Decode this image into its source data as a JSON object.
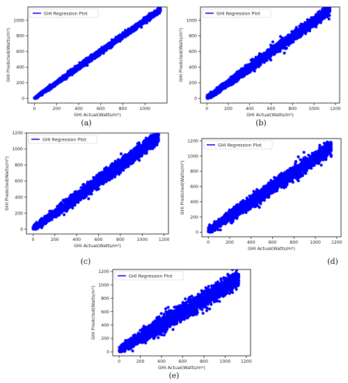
{
  "chart_data": [
    {
      "id": "a",
      "type": "scatter",
      "caption": "(a)",
      "legend": "GHI Regression Plot",
      "legend_position": "top-left",
      "xlabel": "GHI Actual(Watts/m²)",
      "ylabel": "GHI Predicted(Watts/m²)",
      "xlim": [
        -60,
        1200
      ],
      "ylim": [
        -60,
        1170
      ],
      "xticks": [
        0,
        200,
        400,
        600,
        800,
        1000
      ],
      "yticks": [
        0,
        200,
        400,
        600,
        800,
        1000
      ],
      "color": "#0000ff",
      "trend": {
        "slope": 1.0,
        "intercept": 0,
        "x_range": [
          0,
          1140
        ]
      },
      "spread": 30
    },
    {
      "id": "b",
      "type": "scatter",
      "caption": "(b)",
      "legend": "GHI Regression Plot",
      "legend_position": "top-left",
      "xlabel": "GHI Actual(Watts/m²)",
      "ylabel": "GHI Predicted(Watts/m²)",
      "xlim": [
        -60,
        1240
      ],
      "ylim": [
        -60,
        1170
      ],
      "xticks": [
        0,
        200,
        400,
        600,
        800,
        1000,
        1200
      ],
      "yticks": [
        0,
        200,
        400,
        600,
        800,
        1000
      ],
      "color": "#0000ff",
      "trend": {
        "slope": 0.98,
        "intercept": 5,
        "x_range": [
          0,
          1150
        ]
      },
      "spread": 55
    },
    {
      "id": "c",
      "type": "scatter",
      "caption": "(c)",
      "legend": "GHI Regression Plot",
      "legend_position": "top-left",
      "xlabel": "GHI Actual(Watts/m²)",
      "ylabel": "GHI Predicted(Watts/m²)",
      "xlim": [
        -60,
        1240
      ],
      "ylim": [
        -60,
        1200
      ],
      "xticks": [
        0,
        200,
        400,
        600,
        800,
        1000,
        1200
      ],
      "yticks": [
        0,
        200,
        400,
        600,
        800,
        1000,
        1200
      ],
      "color": "#0000ff",
      "trend": {
        "slope": 1.0,
        "intercept": 0,
        "x_range": [
          0,
          1150
        ]
      },
      "spread": 70
    },
    {
      "id": "d",
      "type": "scatter",
      "caption": "(d)",
      "legend": "GHI Regression Plot",
      "legend_position": "top-left",
      "xlabel": "GHI Actual(Watts/m²)",
      "ylabel": "GHI Predicted(Watts/m²)",
      "xlim": [
        -60,
        1240
      ],
      "ylim": [
        -60,
        1230
      ],
      "xticks": [
        0,
        200,
        400,
        600,
        800,
        1000,
        1200
      ],
      "yticks": [
        0,
        200,
        400,
        600,
        800,
        1000,
        1200
      ],
      "color": "#0000ff",
      "trend": {
        "slope": 0.95,
        "intercept": 20,
        "x_range": [
          0,
          1150
        ]
      },
      "spread": 85
    },
    {
      "id": "e",
      "type": "scatter",
      "caption": "(e)",
      "legend": "GHI Regression Plot",
      "legend_position": "top-left",
      "xlabel": "GHI Actual(Watts/m²)",
      "ylabel": "GHI Predicted(Watts/m²)",
      "xlim": [
        -60,
        1240
      ],
      "ylim": [
        -60,
        1230
      ],
      "xticks": [
        0,
        200,
        400,
        600,
        800,
        1000,
        1200
      ],
      "yticks": [
        0,
        200,
        400,
        600,
        800,
        1000,
        1200
      ],
      "color": "#0000ff",
      "trend": {
        "slope": 0.95,
        "intercept": 25,
        "x_range": [
          0,
          1130
        ]
      },
      "spread": 110
    }
  ]
}
